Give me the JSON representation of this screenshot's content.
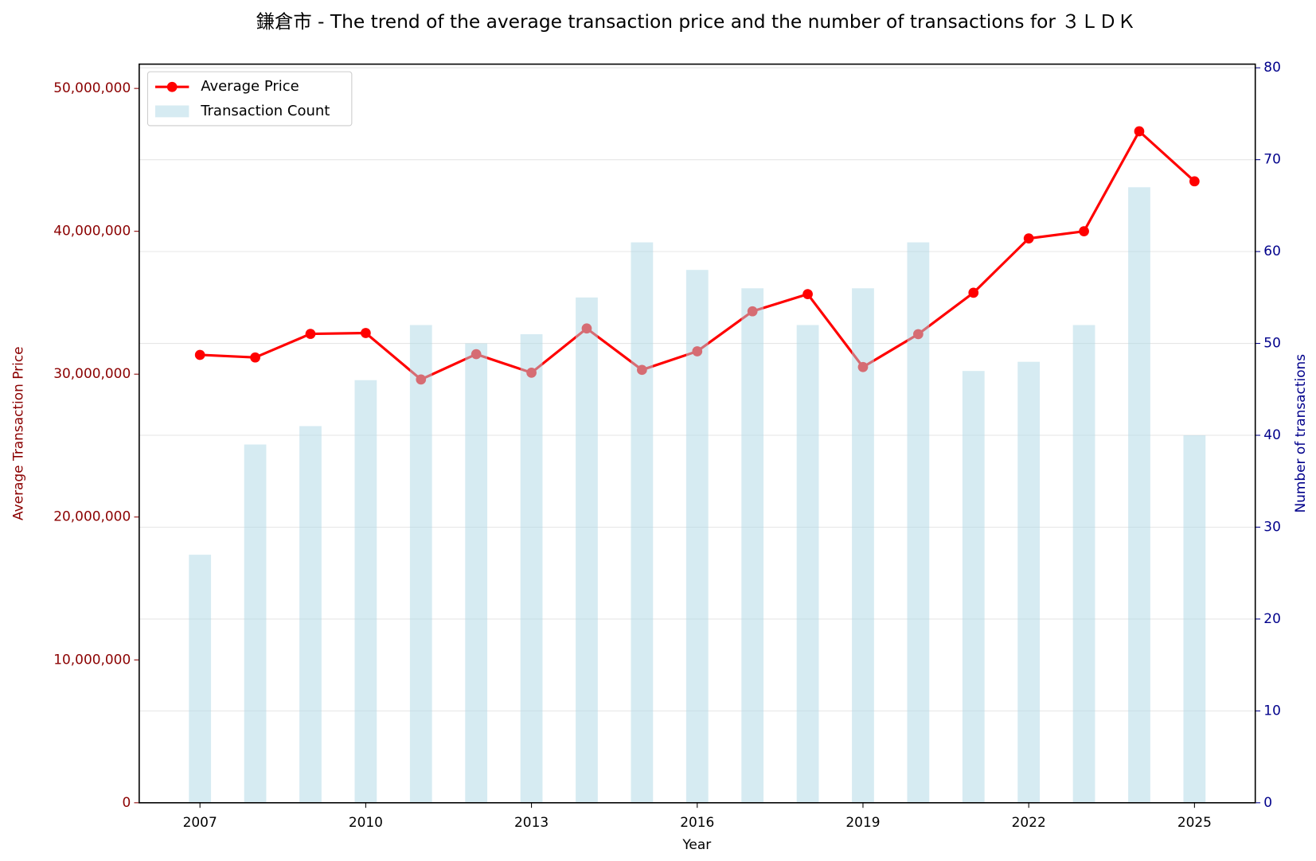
{
  "chart_data": {
    "type": "combo",
    "title": "鎌倉市 - The trend of the average transaction price and the number of transactions for ３ＬＤＫ",
    "x_label": "Year",
    "y_label": "Average Transaction Price",
    "y2_label": "Number of transactions",
    "x": [
      2007,
      2008,
      2009,
      2010,
      2011,
      2012,
      2013,
      2014,
      2015,
      2016,
      2017,
      2018,
      2019,
      2020,
      2021,
      2022,
      2023,
      2024,
      2025
    ],
    "xlim": [
      2005.9,
      2026.1
    ],
    "xticks": [
      2007,
      2010,
      2013,
      2016,
      2019,
      2022,
      2025
    ],
    "ylim": [
      0,
      51700000
    ],
    "yticks": [
      0,
      {
        "value": 10000000,
        "label": "10,000,000"
      },
      {
        "value": 20000000,
        "label": "20,000,000"
      },
      {
        "value": 30000000,
        "label": "30,000,000"
      },
      {
        "value": 40000000,
        "label": "40,000,000"
      },
      {
        "value": 50000000,
        "label": "50,000,000"
      }
    ],
    "y2lim": [
      0,
      80.4
    ],
    "y2ticks": [
      0,
      10,
      20,
      30,
      40,
      50,
      60,
      70,
      80
    ],
    "grid": true,
    "legend": "upper left",
    "series": [
      {
        "name": "Average Price",
        "type": "line",
        "color": "#ff0000",
        "values": [
          31350000,
          31170000,
          32820000,
          32880000,
          29630000,
          31400000,
          30100000,
          33200000,
          30300000,
          31600000,
          34400000,
          35600000,
          30500000,
          32800000,
          35700000,
          39500000,
          40000000,
          47000000,
          43500000
        ]
      },
      {
        "name": "Transaction Count",
        "type": "bar",
        "axis": "y2",
        "color": "#add8e6",
        "values": [
          27,
          39,
          41,
          46,
          52,
          50,
          51,
          55,
          61,
          58,
          56,
          52,
          56,
          61,
          47,
          48,
          52,
          67,
          40
        ]
      }
    ]
  }
}
